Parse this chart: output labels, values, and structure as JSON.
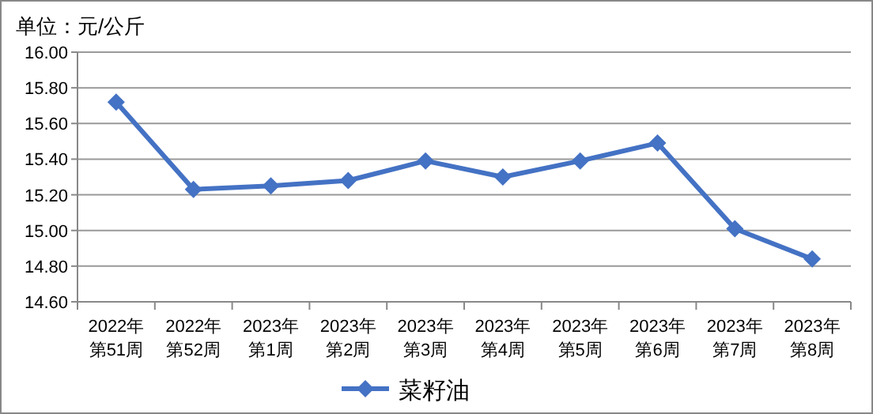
{
  "chart_data": {
    "type": "line",
    "ylabel": "单位：元/公斤",
    "categories": [
      "2022年第51周",
      "2022年第52周",
      "2023年第1周",
      "2023年第2周",
      "2023年第3周",
      "2023年第4周",
      "2023年第5周",
      "2023年第6周",
      "2023年第7周",
      "2023年第8周"
    ],
    "series": [
      {
        "name": "菜籽油",
        "color": "#4472c4",
        "values": [
          15.72,
          15.23,
          15.25,
          15.28,
          15.39,
          15.3,
          15.39,
          15.49,
          15.01,
          14.84
        ]
      }
    ],
    "ylim": [
      14.6,
      16.0
    ],
    "yticks": [
      {
        "value": 14.6,
        "label": "14.60"
      },
      {
        "value": 14.8,
        "label": "14.80"
      },
      {
        "value": 15.0,
        "label": "15.00"
      },
      {
        "value": 15.2,
        "label": "15.20"
      },
      {
        "value": 15.4,
        "label": "15.40"
      },
      {
        "value": 15.6,
        "label": "15.60"
      },
      {
        "value": 15.8,
        "label": "15.80"
      },
      {
        "value": 16.0,
        "label": "16.00"
      }
    ],
    "grid": "y",
    "legend": "bottom",
    "marker": "diamond",
    "line_style": "solid"
  }
}
